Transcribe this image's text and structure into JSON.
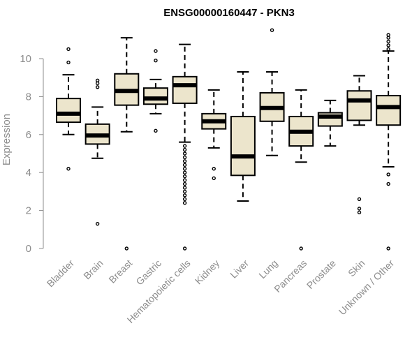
{
  "chart_data": {
    "type": "boxplot",
    "title": "ENSG00000160447 - PKN3",
    "xlabel": "",
    "ylabel": "Expression",
    "ylim": [
      0,
      11.6
    ],
    "yticks": [
      0,
      2,
      4,
      6,
      8,
      10
    ],
    "colors": {
      "box_fill": "#ece5cc",
      "stroke": "#000000",
      "axis": "#8c8c8c",
      "text": "#8c8c8c"
    },
    "categories": [
      "Bladder",
      "Brain",
      "Breast",
      "Gastric",
      "Hematopoietic cells",
      "Kidney",
      "Liver",
      "Lung",
      "Pancreas",
      "Prostate",
      "Skin",
      "Unknown / Other"
    ],
    "boxes": [
      {
        "category": "Bladder",
        "whisker_low": 6.0,
        "q1": 6.65,
        "median": 7.1,
        "q3": 7.9,
        "whisker_high": 9.15,
        "outliers": [
          4.2,
          9.8,
          10.5
        ]
      },
      {
        "category": "Brain",
        "whisker_low": 4.75,
        "q1": 5.5,
        "median": 5.95,
        "q3": 6.55,
        "whisker_high": 7.45,
        "outliers": [
          1.3,
          8.5,
          8.7,
          8.85
        ]
      },
      {
        "category": "Breast",
        "whisker_low": 6.15,
        "q1": 7.55,
        "median": 8.3,
        "q3": 9.2,
        "whisker_high": 11.1,
        "outliers": [
          0.0
        ]
      },
      {
        "category": "Gastric",
        "whisker_low": 7.1,
        "q1": 7.6,
        "median": 7.9,
        "q3": 8.45,
        "whisker_high": 8.9,
        "outliers": [
          6.2,
          9.9,
          10.4
        ]
      },
      {
        "category": "Hematopoietic cells",
        "whisker_low": 5.6,
        "q1": 7.65,
        "median": 8.6,
        "q3": 9.05,
        "whisker_high": 10.75,
        "outliers": [
          0.0,
          2.4,
          2.6,
          2.8,
          3.0,
          3.2,
          3.4,
          3.6,
          3.8,
          4.0,
          4.2,
          4.4,
          4.6,
          4.8,
          5.0,
          5.2,
          5.4
        ]
      },
      {
        "category": "Kidney",
        "whisker_low": 5.3,
        "q1": 6.3,
        "median": 6.7,
        "q3": 7.1,
        "whisker_high": 8.35,
        "outliers": [
          3.7,
          4.2
        ]
      },
      {
        "category": "Liver",
        "whisker_low": 2.5,
        "q1": 3.85,
        "median": 4.85,
        "q3": 6.95,
        "whisker_high": 9.3,
        "outliers": []
      },
      {
        "category": "Lung",
        "whisker_low": 4.9,
        "q1": 6.7,
        "median": 7.4,
        "q3": 8.2,
        "whisker_high": 9.3,
        "outliers": [
          11.5
        ]
      },
      {
        "category": "Pancreas",
        "whisker_low": 4.55,
        "q1": 5.4,
        "median": 6.15,
        "q3": 6.95,
        "whisker_high": 8.35,
        "outliers": [
          0.0
        ]
      },
      {
        "category": "Prostate",
        "whisker_low": 5.4,
        "q1": 6.45,
        "median": 6.95,
        "q3": 7.15,
        "whisker_high": 7.8,
        "outliers": []
      },
      {
        "category": "Skin",
        "whisker_low": 6.5,
        "q1": 6.75,
        "median": 7.8,
        "q3": 8.3,
        "whisker_high": 9.1,
        "outliers": [
          1.9,
          2.1,
          2.6
        ]
      },
      {
        "category": "Unknown / Other",
        "whisker_low": 4.3,
        "q1": 6.5,
        "median": 7.45,
        "q3": 8.05,
        "whisker_high": 10.4,
        "outliers": [
          0.0,
          3.4,
          3.9,
          10.5,
          10.7,
          10.9,
          11.1,
          11.25
        ]
      }
    ]
  }
}
